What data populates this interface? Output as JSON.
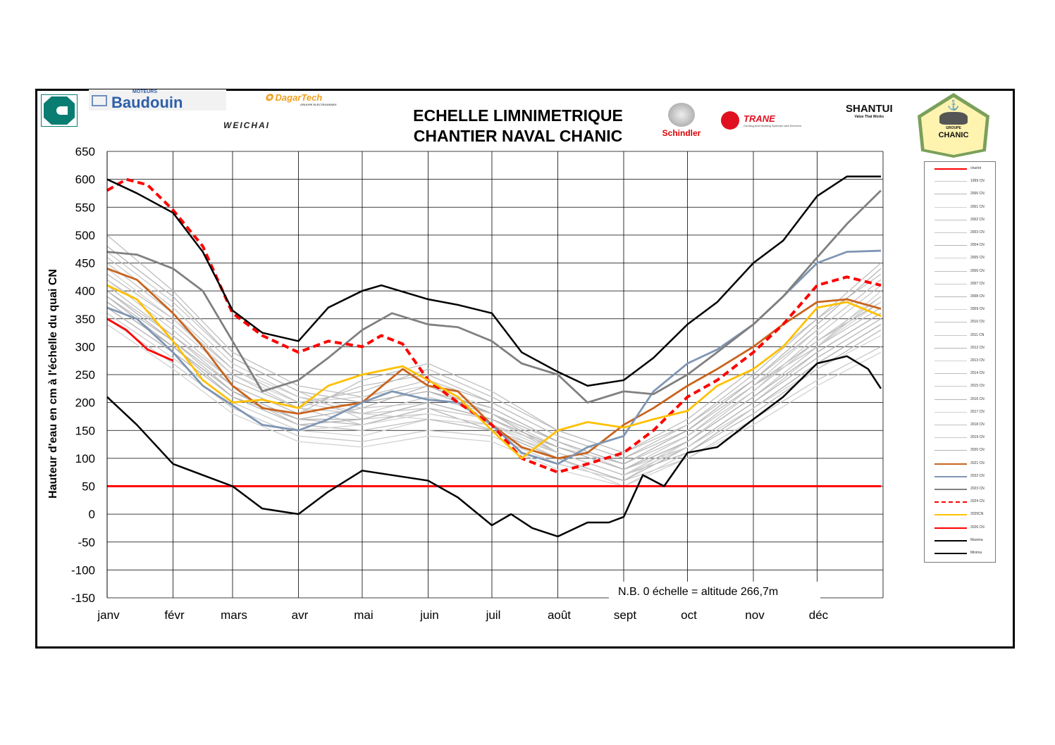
{
  "header": {
    "title_line1": "ECHELLE  LIMNIMETRIQUE",
    "title_line2": "CHANTIER NAVAL CHANIC"
  },
  "logos": {
    "baudouin": "Baudouin",
    "baudouin_sub": "MOTEURS",
    "dagartech": "DagarTech",
    "dagartech_sub": "GROUPE ELECTROGENES",
    "weichai": "WEICHAI",
    "schindler": "Schindler",
    "trane": "TRANE",
    "trane_sub": "Cooling and Heating Systems and Services",
    "shantui": "SHANTUI",
    "shantui_sub": "Value That Works",
    "chanic": "CHANIC",
    "chanic_sub": "GROUPE"
  },
  "chart_data": {
    "type": "line",
    "title": "ECHELLE LIMNIMETRIQUE CHANTIER NAVAL CHANIC",
    "xlabel": "",
    "ylabel": "Hauteur d'eau en cm à l'échelle du quai CN",
    "ylim": [
      -150,
      650
    ],
    "yticks": [
      650,
      600,
      550,
      500,
      450,
      400,
      350,
      300,
      250,
      200,
      150,
      100,
      50,
      0,
      -50,
      -100,
      -150
    ],
    "xlim_days": [
      0,
      365
    ],
    "month_labels": [
      "janv",
      "févr",
      "mars",
      "avr",
      "mai",
      "juin",
      "juil",
      "août",
      "sept",
      "oct",
      "nov",
      "déc"
    ],
    "month_start_days": [
      0,
      31,
      59,
      90,
      120,
      151,
      181,
      212,
      243,
      273,
      304,
      334
    ],
    "annotation": "N.B.  0 échelle = altitude 266,7m",
    "grid": true,
    "legend_position": "right",
    "gray_days": [
      0,
      31,
      59,
      90,
      120,
      151,
      181,
      212,
      243,
      273,
      304,
      334,
      364
    ],
    "gray_series": [
      {
        "name": "1999 CN",
        "values": [
          420,
          330,
          240,
          190,
          160,
          190,
          170,
          120,
          80,
          120,
          200,
          290,
          360
        ]
      },
      {
        "name": "2000 CN",
        "values": [
          380,
          300,
          220,
          170,
          190,
          230,
          180,
          110,
          70,
          110,
          190,
          270,
          340
        ]
      },
      {
        "name": "2001 CN",
        "values": [
          450,
          360,
          260,
          210,
          180,
          170,
          150,
          100,
          60,
          130,
          210,
          300,
          400
        ]
      },
      {
        "name": "2002 CN",
        "values": [
          500,
          400,
          290,
          230,
          210,
          240,
          200,
          140,
          100,
          160,
          240,
          330,
          420
        ]
      },
      {
        "name": "2003 CN",
        "values": [
          350,
          270,
          190,
          140,
          130,
          150,
          140,
          90,
          60,
          100,
          170,
          240,
          300
        ]
      },
      {
        "name": "2004 CN",
        "values": [
          400,
          310,
          230,
          180,
          200,
          220,
          180,
          130,
          90,
          140,
          230,
          310,
          380
        ]
      },
      {
        "name": "2005 CN",
        "values": [
          360,
          280,
          200,
          150,
          140,
          170,
          160,
          100,
          50,
          110,
          180,
          260,
          330
        ]
      },
      {
        "name": "2006 CN",
        "values": [
          430,
          350,
          260,
          200,
          220,
          260,
          210,
          150,
          110,
          170,
          260,
          350,
          430
        ]
      },
      {
        "name": "2007 CN",
        "values": [
          470,
          380,
          280,
          220,
          170,
          180,
          160,
          120,
          80,
          130,
          220,
          320,
          410
        ]
      },
      {
        "name": "2008 CN",
        "values": [
          390,
          300,
          210,
          160,
          170,
          200,
          170,
          110,
          70,
          120,
          200,
          280,
          350
        ]
      },
      {
        "name": "2009 CN",
        "values": [
          340,
          260,
          180,
          130,
          120,
          140,
          130,
          80,
          50,
          100,
          160,
          230,
          290
        ]
      },
      {
        "name": "2010 CN",
        "values": [
          410,
          320,
          240,
          190,
          230,
          250,
          200,
          140,
          100,
          150,
          230,
          300,
          370
        ]
      },
      {
        "name": "2011 CN",
        "values": [
          460,
          370,
          270,
          210,
          190,
          200,
          170,
          120,
          90,
          140,
          220,
          310,
          390
        ]
      },
      {
        "name": "2012 CN",
        "values": [
          370,
          290,
          210,
          170,
          160,
          190,
          150,
          100,
          60,
          120,
          190,
          270,
          340
        ]
      },
      {
        "name": "2013 CN",
        "values": [
          440,
          350,
          250,
          200,
          210,
          230,
          190,
          130,
          80,
          130,
          210,
          300,
          380
        ]
      },
      {
        "name": "2014 CN",
        "values": [
          390,
          310,
          220,
          160,
          150,
          170,
          150,
          110,
          70,
          110,
          180,
          260,
          330
        ]
      },
      {
        "name": "2015 CN",
        "values": [
          420,
          340,
          250,
          190,
          180,
          210,
          180,
          120,
          80,
          140,
          230,
          330,
          420
        ]
      },
      {
        "name": "2016 CN",
        "values": [
          480,
          390,
          280,
          220,
          200,
          220,
          190,
          130,
          90,
          150,
          240,
          340,
          440
        ]
      },
      {
        "name": "2017 CN",
        "values": [
          360,
          280,
          200,
          150,
          160,
          180,
          160,
          110,
          70,
          120,
          190,
          260,
          320
        ]
      },
      {
        "name": "2018 CN",
        "values": [
          400,
          320,
          230,
          180,
          240,
          270,
          220,
          150,
          110,
          160,
          250,
          350,
          450
        ]
      },
      {
        "name": "2019 CN",
        "values": [
          450,
          360,
          260,
          200,
          180,
          190,
          170,
          110,
          70,
          130,
          210,
          300,
          390
        ]
      },
      {
        "name": "2020 CN",
        "values": [
          380,
          300,
          220,
          170,
          170,
          200,
          170,
          120,
          80,
          130,
          210,
          290,
          360
        ]
      }
    ],
    "series": [
      {
        "name": "charlot",
        "color": "#ff0000",
        "dash": false,
        "points": [
          [
            0,
            50
          ],
          [
            364,
            50
          ]
        ]
      },
      {
        "name": "2021 CN",
        "color": "#c8641e",
        "dash": false,
        "points": [
          [
            0,
            440
          ],
          [
            14,
            420
          ],
          [
            31,
            360
          ],
          [
            45,
            300
          ],
          [
            59,
            230
          ],
          [
            73,
            190
          ],
          [
            90,
            180
          ],
          [
            104,
            190
          ],
          [
            120,
            200
          ],
          [
            139,
            260
          ],
          [
            151,
            230
          ],
          [
            165,
            220
          ],
          [
            181,
            160
          ],
          [
            195,
            120
          ],
          [
            212,
            100
          ],
          [
            226,
            110
          ],
          [
            243,
            160
          ],
          [
            257,
            190
          ],
          [
            273,
            230
          ],
          [
            287,
            260
          ],
          [
            304,
            300
          ],
          [
            318,
            340
          ],
          [
            334,
            380
          ],
          [
            348,
            385
          ],
          [
            364,
            368
          ]
        ]
      },
      {
        "name": "2022 CN",
        "color": "#7f96b4",
        "dash": false,
        "points": [
          [
            0,
            370
          ],
          [
            14,
            350
          ],
          [
            31,
            290
          ],
          [
            45,
            230
          ],
          [
            59,
            195
          ],
          [
            73,
            160
          ],
          [
            90,
            150
          ],
          [
            104,
            170
          ],
          [
            120,
            200
          ],
          [
            134,
            220
          ],
          [
            151,
            205
          ],
          [
            165,
            200
          ],
          [
            181,
            160
          ],
          [
            195,
            110
          ],
          [
            212,
            90
          ],
          [
            226,
            120
          ],
          [
            243,
            140
          ],
          [
            257,
            220
          ],
          [
            273,
            270
          ],
          [
            287,
            295
          ],
          [
            304,
            340
          ],
          [
            318,
            390
          ],
          [
            334,
            450
          ],
          [
            348,
            470
          ],
          [
            364,
            472
          ]
        ]
      },
      {
        "name": "2023 CN",
        "color": "#808080",
        "dash": false,
        "points": [
          [
            0,
            470
          ],
          [
            14,
            465
          ],
          [
            31,
            440
          ],
          [
            45,
            400
          ],
          [
            59,
            310
          ],
          [
            73,
            220
          ],
          [
            90,
            240
          ],
          [
            104,
            280
          ],
          [
            120,
            330
          ],
          [
            134,
            360
          ],
          [
            151,
            340
          ],
          [
            165,
            335
          ],
          [
            181,
            310
          ],
          [
            195,
            270
          ],
          [
            212,
            250
          ],
          [
            226,
            200
          ],
          [
            243,
            220
          ],
          [
            257,
            215
          ],
          [
            273,
            250
          ],
          [
            287,
            290
          ],
          [
            304,
            340
          ],
          [
            318,
            390
          ],
          [
            334,
            460
          ],
          [
            348,
            520
          ],
          [
            364,
            580
          ]
        ]
      },
      {
        "name": "2024 CN",
        "color": "#ff0000",
        "dash": true,
        "points": [
          [
            0,
            580
          ],
          [
            9,
            600
          ],
          [
            19,
            590
          ],
          [
            31,
            545
          ],
          [
            45,
            480
          ],
          [
            59,
            360
          ],
          [
            73,
            320
          ],
          [
            90,
            290
          ],
          [
            104,
            310
          ],
          [
            120,
            300
          ],
          [
            129,
            320
          ],
          [
            139,
            305
          ],
          [
            151,
            240
          ],
          [
            165,
            200
          ],
          [
            181,
            160
          ],
          [
            195,
            100
          ],
          [
            212,
            75
          ],
          [
            226,
            90
          ],
          [
            243,
            110
          ],
          [
            257,
            150
          ],
          [
            273,
            210
          ],
          [
            287,
            240
          ],
          [
            304,
            290
          ],
          [
            318,
            340
          ],
          [
            334,
            410
          ],
          [
            348,
            425
          ],
          [
            364,
            410
          ]
        ]
      },
      {
        "name": "2025CN",
        "color": "#ffc000",
        "dash": false,
        "points": [
          [
            0,
            410
          ],
          [
            14,
            385
          ],
          [
            31,
            310
          ],
          [
            45,
            240
          ],
          [
            59,
            200
          ],
          [
            73,
            205
          ],
          [
            90,
            190
          ],
          [
            104,
            230
          ],
          [
            120,
            250
          ],
          [
            139,
            265
          ],
          [
            151,
            240
          ],
          [
            165,
            210
          ],
          [
            181,
            150
          ],
          [
            195,
            100
          ],
          [
            212,
            150
          ],
          [
            226,
            165
          ],
          [
            243,
            155
          ],
          [
            257,
            170
          ],
          [
            273,
            185
          ],
          [
            287,
            230
          ],
          [
            304,
            260
          ],
          [
            318,
            300
          ],
          [
            334,
            370
          ],
          [
            348,
            380
          ],
          [
            364,
            355
          ]
        ]
      },
      {
        "name": "2026 CN",
        "color": "#ff0000",
        "dash": false,
        "points": [
          [
            0,
            350
          ],
          [
            9,
            330
          ],
          [
            19,
            295
          ],
          [
            31,
            275
          ]
        ]
      },
      {
        "name": "Maxima",
        "color": "#000000",
        "dash": false,
        "points": [
          [
            0,
            600
          ],
          [
            14,
            575
          ],
          [
            31,
            540
          ],
          [
            45,
            470
          ],
          [
            59,
            365
          ],
          [
            73,
            325
          ],
          [
            90,
            310
          ],
          [
            104,
            370
          ],
          [
            120,
            400
          ],
          [
            129,
            410
          ],
          [
            151,
            385
          ],
          [
            165,
            375
          ],
          [
            181,
            360
          ],
          [
            195,
            290
          ],
          [
            212,
            255
          ],
          [
            226,
            230
          ],
          [
            243,
            240
          ],
          [
            257,
            280
          ],
          [
            273,
            340
          ],
          [
            287,
            380
          ],
          [
            304,
            450
          ],
          [
            318,
            490
          ],
          [
            334,
            570
          ],
          [
            348,
            605
          ],
          [
            364,
            605
          ]
        ]
      },
      {
        "name": "Minima",
        "color": "#000000",
        "dash": false,
        "points": [
          [
            0,
            210
          ],
          [
            14,
            160
          ],
          [
            31,
            90
          ],
          [
            45,
            70
          ],
          [
            59,
            50
          ],
          [
            73,
            10
          ],
          [
            90,
            0
          ],
          [
            104,
            40
          ],
          [
            120,
            78
          ],
          [
            151,
            60
          ],
          [
            165,
            30
          ],
          [
            181,
            -20
          ],
          [
            190,
            0
          ],
          [
            200,
            -25
          ],
          [
            212,
            -40
          ],
          [
            226,
            -15
          ],
          [
            236,
            -15
          ],
          [
            243,
            -5
          ],
          [
            252,
            70
          ],
          [
            262,
            50
          ],
          [
            273,
            110
          ],
          [
            287,
            120
          ],
          [
            304,
            170
          ],
          [
            318,
            210
          ],
          [
            334,
            270
          ],
          [
            348,
            283
          ],
          [
            358,
            260
          ],
          [
            364,
            225
          ]
        ]
      }
    ]
  }
}
